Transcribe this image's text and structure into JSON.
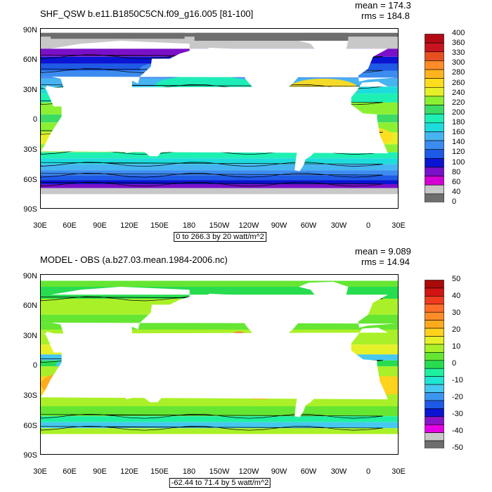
{
  "chart_data": [
    {
      "type": "heatmap",
      "title": "SHF_QSW b.e11.B1850C5CN.f09_g16.005 [81-100]",
      "stats": {
        "mean": "mean = 174.3",
        "rms": "rms = 184.8"
      },
      "yticks": [
        "90N",
        "60N",
        "30N",
        "0",
        "30S",
        "60S",
        "90S"
      ],
      "xticks": [
        "30E",
        "60E",
        "90E",
        "120E",
        "150E",
        "180",
        "150W",
        "120W",
        "90W",
        "60W",
        "30W",
        "0",
        "30E"
      ],
      "units_label": "0 to 266.3 by 20 watt/m^2",
      "colorbar_labels": [
        "400",
        "360",
        "330",
        "300",
        "280",
        "260",
        "240",
        "220",
        "200",
        "180",
        "160",
        "140",
        "120",
        "100",
        "80",
        "60",
        "40",
        "0"
      ],
      "colorbar_levels": [
        0,
        40,
        60,
        80,
        100,
        120,
        140,
        160,
        180,
        200,
        220,
        240,
        260,
        280,
        300,
        330,
        360,
        400
      ],
      "colorbar_colors": [
        "#6e6e6e",
        "#c8c8c8",
        "#d400d4",
        "#7a10c8",
        "#0a14d2",
        "#1e5ae6",
        "#3c8cf0",
        "#46b4f0",
        "#1edcdc",
        "#1ef0b4",
        "#3cdc64",
        "#8cf032",
        "#e6f028",
        "#ffdc1e",
        "#ffb41e",
        "#ff8c28",
        "#e6501e",
        "#c8141e",
        "#b40a14"
      ]
    },
    {
      "type": "heatmap",
      "title": "MODEL - OBS (a.b27.03.mean.1984-2006.nc)",
      "stats": {
        "mean": "mean = 9.089",
        "rms": "rms = 14.94"
      },
      "yticks": [
        "90N",
        "60N",
        "30N",
        "0",
        "30S",
        "60S",
        "90S"
      ],
      "xticks": [
        "30E",
        "60E",
        "90E",
        "120E",
        "150E",
        "180",
        "150W",
        "120W",
        "90W",
        "60W",
        "30W",
        "0",
        "30E"
      ],
      "units_label": "-62.44 to 71.4 by 5 watt/m^2",
      "colorbar_labels": [
        "50",
        "40",
        "30",
        "20",
        "10",
        "0",
        "-10",
        "-20",
        "-30",
        "-40",
        "-50"
      ],
      "colorbar_levels": [
        -50,
        -45,
        -40,
        -35,
        -30,
        -25,
        -20,
        -15,
        -10,
        -5,
        0,
        5,
        10,
        15,
        20,
        25,
        30,
        35,
        40,
        45,
        50
      ],
      "colorbar_colors": [
        "#6e6e6e",
        "#c8c8c8",
        "#e600e6",
        "#8c14c8",
        "#0a14d2",
        "#1e5ae6",
        "#3c96f0",
        "#46c8f0",
        "#1ee6d2",
        "#1ef0a0",
        "#28dc50",
        "#64e632",
        "#aaf028",
        "#e6f028",
        "#ffd21e",
        "#ffaa1e",
        "#ff8c28",
        "#ff6e28",
        "#f03c1e",
        "#d21414",
        "#aa0a0a"
      ]
    }
  ]
}
